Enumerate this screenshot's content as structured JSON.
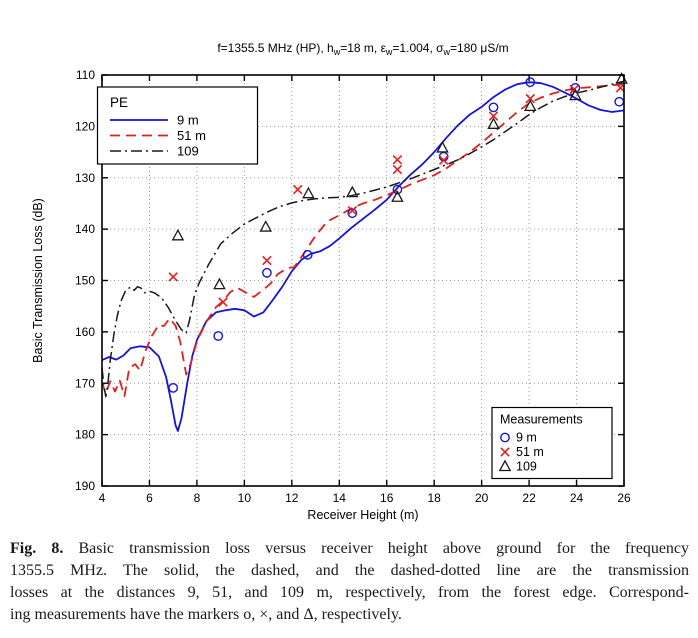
{
  "chart_data": {
    "type": "line",
    "title": "f=1355.5 MHz (HP), h_w=18 m, ε_w=1.004, σ_w=180 μS/m",
    "title_segments": [
      {
        "text": "f=1355.5 MHz (HP), h",
        "sub": false
      },
      {
        "text": "w",
        "sub": true
      },
      {
        "text": "=18 m, ε",
        "sub": false
      },
      {
        "text": "w",
        "sub": true
      },
      {
        "text": "=1.004, σ",
        "sub": false
      },
      {
        "text": "w",
        "sub": true
      },
      {
        "text": "=180 μS/m",
        "sub": false
      }
    ],
    "xlabel": "Receiver Height (m)",
    "ylabel": "Basic Transmission Loss (dB)",
    "xlim": [
      4,
      26
    ],
    "ylim": [
      110,
      190
    ],
    "y_axis_reversed": true,
    "xticks": [
      4,
      6,
      8,
      10,
      12,
      14,
      16,
      18,
      20,
      22,
      24,
      26
    ],
    "yticks": [
      110,
      120,
      130,
      140,
      150,
      160,
      170,
      180,
      190
    ],
    "grid": "dotted",
    "colors": {
      "blue": "#1515d6",
      "red": "#e02020",
      "black": "#1a1a1a"
    },
    "series": [
      {
        "name": "9 m",
        "legend": "PE 9 m",
        "color": "#1515d6",
        "style": "solid",
        "points": [
          [
            4,
            165.5
          ],
          [
            4.3,
            164.9
          ],
          [
            4.6,
            165.4
          ],
          [
            4.9,
            164.6
          ],
          [
            5.2,
            163.2
          ],
          [
            5.6,
            162.8
          ],
          [
            6,
            163
          ],
          [
            6.4,
            164.8
          ],
          [
            6.7,
            168.8
          ],
          [
            6.9,
            173.2
          ],
          [
            7.1,
            178.2
          ],
          [
            7.2,
            179.3
          ],
          [
            7.35,
            176.8
          ],
          [
            7.6,
            169.8
          ],
          [
            7.8,
            164.8
          ],
          [
            8,
            161.6
          ],
          [
            8.4,
            157.9
          ],
          [
            8.8,
            156.2
          ],
          [
            9.2,
            155.8
          ],
          [
            9.6,
            155.5
          ],
          [
            10,
            155.8
          ],
          [
            10.4,
            157
          ],
          [
            10.8,
            156.2
          ],
          [
            11.2,
            153.8
          ],
          [
            11.6,
            151.2
          ],
          [
            12,
            148.2
          ],
          [
            12.4,
            146
          ],
          [
            12.8,
            144.8
          ],
          [
            13.2,
            144.3
          ],
          [
            13.6,
            143.3
          ],
          [
            14,
            141.8
          ],
          [
            14.5,
            139.8
          ],
          [
            15,
            138
          ],
          [
            15.5,
            136.2
          ],
          [
            16,
            134.3
          ],
          [
            16.5,
            131.7
          ],
          [
            17,
            129.4
          ],
          [
            17.5,
            127.4
          ],
          [
            18,
            125
          ],
          [
            18.5,
            122.3
          ],
          [
            19,
            119.8
          ],
          [
            19.5,
            117.7
          ],
          [
            20,
            116.2
          ],
          [
            20.5,
            114.3
          ],
          [
            21,
            112.8
          ],
          [
            21.5,
            111.8
          ],
          [
            22,
            111.4
          ],
          [
            22.5,
            111.6
          ],
          [
            23,
            112.3
          ],
          [
            23.5,
            113.4
          ],
          [
            24,
            114.6
          ],
          [
            24.5,
            115.9
          ],
          [
            25,
            116.8
          ],
          [
            25.5,
            117.2
          ],
          [
            26,
            116.9
          ]
        ]
      },
      {
        "name": "51 m",
        "legend": "PE 51 m",
        "color": "#e02020",
        "style": "dashed",
        "points": [
          [
            4,
            169.8
          ],
          [
            4.15,
            172
          ],
          [
            4.35,
            169.6
          ],
          [
            4.55,
            171.6
          ],
          [
            4.75,
            169.5
          ],
          [
            4.95,
            172.5
          ],
          [
            5.15,
            167
          ],
          [
            5.4,
            166.3
          ],
          [
            5.6,
            167.5
          ],
          [
            5.85,
            163.5
          ],
          [
            6.1,
            160.8
          ],
          [
            6.4,
            158.6
          ],
          [
            6.6,
            158.9
          ],
          [
            6.85,
            157.4
          ],
          [
            7.1,
            158.8
          ],
          [
            7.3,
            162
          ],
          [
            7.55,
            168.3
          ],
          [
            7.75,
            166
          ],
          [
            8,
            161.8
          ],
          [
            8.4,
            158
          ],
          [
            8.8,
            155.2
          ],
          [
            9.1,
            154
          ],
          [
            9.4,
            152.3
          ],
          [
            9.7,
            151.4
          ],
          [
            10,
            152.2
          ],
          [
            10.4,
            153.2
          ],
          [
            10.8,
            151.8
          ],
          [
            11.1,
            150.6
          ],
          [
            11.4,
            148.8
          ],
          [
            11.8,
            147.6
          ],
          [
            12.1,
            147.4
          ],
          [
            12.5,
            144.8
          ],
          [
            13,
            141.3
          ],
          [
            13.5,
            138.5
          ],
          [
            14,
            137.3
          ],
          [
            14.5,
            136
          ],
          [
            15,
            135
          ],
          [
            15.5,
            134.3
          ],
          [
            16,
            133.4
          ],
          [
            16.5,
            132.4
          ],
          [
            17,
            131.3
          ],
          [
            17.5,
            130.4
          ],
          [
            18,
            129.5
          ],
          [
            18.5,
            128.2
          ],
          [
            19,
            126.6
          ],
          [
            19.5,
            125
          ],
          [
            20,
            123.2
          ],
          [
            20.5,
            121.2
          ],
          [
            21,
            119.2
          ],
          [
            21.5,
            117.2
          ],
          [
            22,
            115.5
          ],
          [
            22.5,
            114.4
          ],
          [
            23,
            113.6
          ],
          [
            23.5,
            113
          ],
          [
            24,
            112.6
          ],
          [
            24.5,
            112.4
          ],
          [
            25,
            112.2
          ],
          [
            25.5,
            112
          ],
          [
            26,
            111.8
          ]
        ]
      },
      {
        "name": "109",
        "legend": "PE 109",
        "color": "#1a1a1a",
        "style": "dashdot",
        "points": [
          [
            4,
            167
          ],
          [
            4.08,
            170.5
          ],
          [
            4.16,
            172.6
          ],
          [
            4.25,
            170
          ],
          [
            4.35,
            165.5
          ],
          [
            4.5,
            160.5
          ],
          [
            4.65,
            156.8
          ],
          [
            4.8,
            154
          ],
          [
            5,
            151.9
          ],
          [
            5.2,
            151.3
          ],
          [
            5.35,
            151.9
          ],
          [
            5.5,
            151.2
          ],
          [
            5.65,
            151.5
          ],
          [
            5.8,
            152.4
          ],
          [
            6,
            152.1
          ],
          [
            6.2,
            152.4
          ],
          [
            6.5,
            153.3
          ],
          [
            6.8,
            155.3
          ],
          [
            7.1,
            157.8
          ],
          [
            7.35,
            159.6
          ],
          [
            7.55,
            160.2
          ],
          [
            7.7,
            157.5
          ],
          [
            7.9,
            152.8
          ],
          [
            8.1,
            150.4
          ],
          [
            8.5,
            146.8
          ],
          [
            9,
            142.9
          ],
          [
            9.5,
            140.8
          ],
          [
            10,
            139
          ],
          [
            10.5,
            137.8
          ],
          [
            11,
            136.6
          ],
          [
            11.5,
            135.6
          ],
          [
            12,
            134.9
          ],
          [
            12.5,
            134.4
          ],
          [
            13,
            134.1
          ],
          [
            13.5,
            133.9
          ],
          [
            14,
            133.8
          ],
          [
            14.5,
            133.5
          ],
          [
            15,
            133
          ],
          [
            15.5,
            132.4
          ],
          [
            16,
            131.8
          ],
          [
            16.5,
            131
          ],
          [
            17,
            130.2
          ],
          [
            17.5,
            129.3
          ],
          [
            18,
            128.4
          ],
          [
            18.5,
            127.5
          ],
          [
            19,
            126.5
          ],
          [
            19.5,
            125.3
          ],
          [
            20,
            124
          ],
          [
            20.5,
            122.6
          ],
          [
            21,
            121
          ],
          [
            21.5,
            119.4
          ],
          [
            22,
            117.7
          ],
          [
            22.5,
            116.3
          ],
          [
            23,
            115.1
          ],
          [
            23.5,
            114.2
          ],
          [
            24,
            113.5
          ],
          [
            24.5,
            113
          ],
          [
            25,
            112.4
          ],
          [
            25.5,
            111.8
          ],
          [
            26,
            111.2
          ]
        ]
      }
    ],
    "measurements": [
      {
        "name": "9 m",
        "marker": "circle",
        "color": "#1515d6",
        "points": [
          [
            7,
            170.9
          ],
          [
            8.9,
            160.8
          ],
          [
            10.95,
            148.5
          ],
          [
            12.67,
            145
          ],
          [
            14.55,
            136.9
          ],
          [
            16.45,
            132.3
          ],
          [
            18.4,
            125.9
          ],
          [
            20.5,
            116.3
          ],
          [
            22.05,
            111.4
          ],
          [
            23.95,
            112.5
          ],
          [
            25.8,
            115.2
          ]
        ]
      },
      {
        "name": "51 m",
        "marker": "cross",
        "color": "#e02020",
        "points": [
          [
            7,
            149.3
          ],
          [
            9.1,
            154.2
          ],
          [
            10.95,
            146.1
          ],
          [
            12.25,
            132.3
          ],
          [
            14.55,
            136.4
          ],
          [
            16.45,
            126.5
          ],
          [
            16.45,
            128.4
          ],
          [
            18.4,
            126.6
          ],
          [
            20.5,
            118
          ],
          [
            22.05,
            114.6
          ],
          [
            23.9,
            112.8
          ],
          [
            25.85,
            112.5
          ]
        ]
      },
      {
        "name": "109",
        "marker": "triangle",
        "color": "#1a1a1a",
        "points": [
          [
            7.2,
            141.3
          ],
          [
            8.95,
            150.8
          ],
          [
            10.9,
            139.6
          ],
          [
            12.7,
            133.1
          ],
          [
            14.55,
            132.9
          ],
          [
            16.45,
            133.8
          ],
          [
            18.35,
            124.2
          ],
          [
            20.5,
            119.6
          ],
          [
            22.05,
            116.1
          ],
          [
            23.95,
            114
          ],
          [
            25.9,
            110.8
          ]
        ]
      }
    ],
    "legend_pe": {
      "title": "PE",
      "position": "upper-left",
      "items": [
        {
          "label": "9 m",
          "style": "solid",
          "color": "#1515d6"
        },
        {
          "label": "51 m",
          "style": "dashed",
          "color": "#e02020"
        },
        {
          "label": "109",
          "style": "dashdot",
          "color": "#1a1a1a"
        }
      ]
    },
    "legend_measurements": {
      "title": "Measurements",
      "position": "lower-right",
      "items": [
        {
          "label": "9 m",
          "marker": "circle",
          "color": "#1515d6"
        },
        {
          "label": "51 m",
          "marker": "cross",
          "color": "#e02020"
        },
        {
          "label": "109",
          "marker": "triangle",
          "color": "#1a1a1a"
        }
      ]
    }
  },
  "caption": {
    "label": "Fig. 8.",
    "lines": [
      "Basic transmission loss versus receiver height above ground for the frequency",
      "1355.5 MHz. The solid, the dashed, and the dashed-dotted line are the transmission",
      "losses at the distances 9, 51, and 109 m, respectively, from the forest edge. Correspond-",
      "ing measurements have the markers o, ×, and Δ, respectively."
    ]
  }
}
